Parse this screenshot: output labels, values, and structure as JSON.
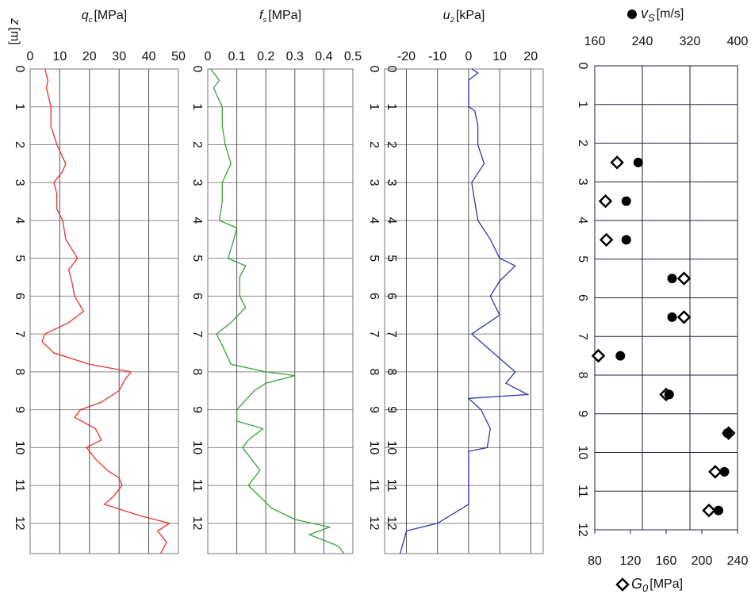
{
  "chart_data": [
    {
      "type": "line",
      "ylabel": "z",
      "ylabel_unit": "[m]",
      "xlabel": "q",
      "xlabel_sub": "c",
      "xlabel_unit": "[MPa]",
      "color": "#e8302a",
      "grid": true,
      "xlim": [
        0,
        50
      ],
      "xticks": [
        0,
        10,
        20,
        30,
        40,
        50
      ],
      "ylim": [
        0,
        12.8
      ],
      "yticks": [
        0,
        1,
        2,
        3,
        4,
        5,
        6,
        7,
        8,
        9,
        10,
        11,
        12
      ],
      "x": [
        5,
        6,
        5.5,
        7,
        7,
        9,
        12,
        11,
        8,
        9,
        9,
        11,
        12,
        16,
        13,
        14,
        15,
        18,
        13,
        5,
        4,
        8,
        20,
        34,
        32,
        30,
        24,
        17,
        15,
        22,
        24,
        19,
        22,
        26,
        30,
        31,
        28,
        25,
        37,
        47,
        43,
        46,
        44
      ],
      "y": [
        0,
        0.3,
        0.5,
        1,
        1.5,
        2,
        2.5,
        2.7,
        3,
        3.3,
        3.7,
        4,
        4.5,
        5,
        5.3,
        5.6,
        6,
        6.4,
        6.7,
        7,
        7.2,
        7.5,
        7.8,
        8,
        8.2,
        8.5,
        8.8,
        9,
        9.2,
        9.5,
        9.8,
        10,
        10.3,
        10.6,
        10.8,
        11,
        11.3,
        11.5,
        11.8,
        12,
        12.2,
        12.5,
        12.8
      ]
    },
    {
      "type": "line",
      "xlabel": "f",
      "xlabel_sub": "s",
      "xlabel_unit": "[MPa]",
      "color": "#3aa03a",
      "grid": true,
      "xlim": [
        0,
        0.5
      ],
      "xticks": [
        0,
        0.1,
        0.2,
        0.3,
        0.4,
        0.5
      ],
      "ylim": [
        0,
        12.8
      ],
      "yticks": [
        0,
        1,
        2,
        3,
        4,
        5,
        6,
        7,
        8,
        9,
        10,
        11,
        12
      ],
      "x": [
        0.01,
        0.04,
        0.02,
        0.05,
        0.05,
        0.06,
        0.08,
        0.05,
        0.05,
        0.04,
        0.1,
        0.09,
        0.07,
        0.13,
        0.11,
        0.11,
        0.13,
        0.08,
        0.03,
        0.05,
        0.08,
        0.2,
        0.3,
        0.2,
        0.16,
        0.1,
        0.1,
        0.19,
        0.14,
        0.12,
        0.15,
        0.18,
        0.14,
        0.18,
        0.22,
        0.3,
        0.42,
        0.35,
        0.45,
        0.47
      ],
      "y": [
        0,
        0.3,
        0.5,
        1,
        1.5,
        2,
        2.5,
        3,
        3.5,
        4,
        4.2,
        4.5,
        5,
        5.2,
        5.5,
        6,
        6.3,
        6.7,
        7,
        7.3,
        7.8,
        8,
        8.1,
        8.3,
        8.5,
        9,
        9.3,
        9.5,
        9.8,
        10,
        10.3,
        10.6,
        11,
        11.3,
        11.6,
        11.9,
        12.1,
        12.3,
        12.6,
        12.8
      ]
    },
    {
      "type": "line",
      "xlabel": "u",
      "xlabel_sub": "2",
      "xlabel_unit": "[kPa]",
      "color": "#3333aa",
      "grid": true,
      "inner_depth_labels": true,
      "xlim": [
        -27,
        24
      ],
      "xticks": [
        -20,
        -10,
        0,
        10,
        20
      ],
      "ylim": [
        0,
        12.8
      ],
      "yticks": [
        0,
        1,
        2,
        3,
        4,
        5,
        6,
        7,
        8,
        9,
        10,
        11,
        12
      ],
      "x": [
        1,
        3,
        0,
        0,
        2,
        3,
        3,
        5,
        1,
        2,
        3,
        7,
        10,
        15,
        10,
        7,
        10,
        1,
        8,
        15,
        12,
        19,
        0,
        4,
        7,
        6,
        0,
        0,
        0,
        -10,
        -20,
        -22
      ],
      "y": [
        0,
        0.1,
        0.3,
        1,
        1.1,
        1.5,
        2,
        2.5,
        3,
        3.5,
        4,
        4.5,
        5,
        5.2,
        5.6,
        6,
        6.5,
        7,
        7.5,
        8,
        8.3,
        8.6,
        8.7,
        9,
        9.5,
        10,
        10.1,
        11,
        11.5,
        12,
        12.2,
        12.8
      ]
    },
    {
      "type": "scatter",
      "grid": true,
      "xlim": [
        160,
        400
      ],
      "xticks": [
        160,
        240,
        320,
        400
      ],
      "x2lim": [
        80,
        240
      ],
      "x2ticks": [
        80,
        120,
        160,
        200,
        240
      ],
      "ylim": [
        0,
        12
      ],
      "yticks": [
        0,
        1,
        2,
        3,
        4,
        5,
        6,
        7,
        8,
        9,
        10,
        11,
        12
      ],
      "series": [
        {
          "symbol": "G",
          "sub": "0",
          "unit": "[MPa]",
          "marker": "diamond",
          "axis": "x2",
          "color": "#000000",
          "x": [
            105,
            92,
            93,
            180,
            180,
            84,
            160,
            230,
            215,
            208
          ],
          "y": [
            2.5,
            3.5,
            4.5,
            5.5,
            6.5,
            7.5,
            8.5,
            9.5,
            10.5,
            11.5
          ]
        },
        {
          "symbol": "v",
          "sub": "S",
          "unit": "[m/s]",
          "marker": "circle",
          "color": "#000000",
          "x": [
            233,
            213,
            213,
            290,
            290,
            203,
            285,
            383,
            378,
            368
          ],
          "y": [
            2.5,
            3.5,
            4.5,
            5.5,
            6.5,
            7.5,
            8.5,
            9.5,
            10.5,
            11.5
          ]
        }
      ]
    }
  ]
}
